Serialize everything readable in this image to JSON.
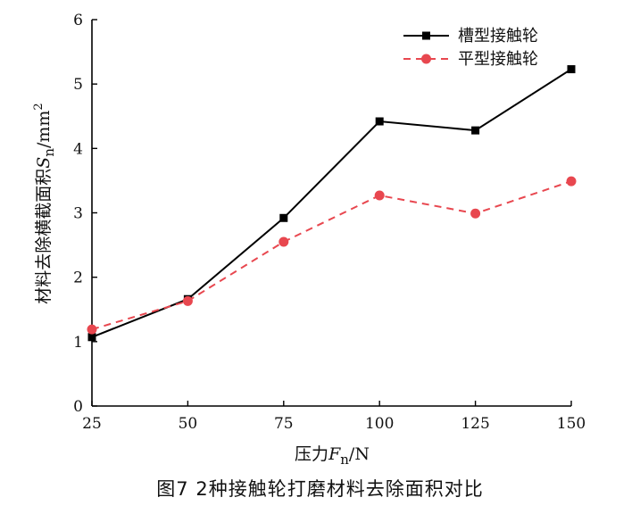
{
  "chart_data": {
    "type": "line",
    "title": "",
    "x": [
      25,
      50,
      75,
      100,
      125,
      150
    ],
    "xticks": [
      "25",
      "50",
      "75",
      "100",
      "125",
      "150"
    ],
    "yticks": [
      "0",
      "1",
      "2",
      "3",
      "4",
      "5",
      "6"
    ],
    "xlim": [
      25,
      150
    ],
    "ylim": [
      0,
      6
    ],
    "xlabel": {
      "prefix": "压力",
      "symbol": "F",
      "sub": "n",
      "unit": "/N"
    },
    "ylabel": {
      "prefix": "材料去除横截面积",
      "symbol": "S",
      "sub": "n",
      "unit": "/mm",
      "sup": "2"
    },
    "legend_position": "top-right",
    "series": [
      {
        "name": "槽型接触轮",
        "color": "#000000",
        "style": "solid",
        "marker": "square",
        "values": [
          1.07,
          1.66,
          2.92,
          4.42,
          4.28,
          5.23
        ]
      },
      {
        "name": "平型接触轮",
        "color": "#e8474f",
        "style": "dashed",
        "marker": "circle",
        "values": [
          1.19,
          1.63,
          2.55,
          3.27,
          2.99,
          3.49
        ]
      }
    ]
  },
  "caption": "图7 2种接触轮打磨材料去除面积对比"
}
